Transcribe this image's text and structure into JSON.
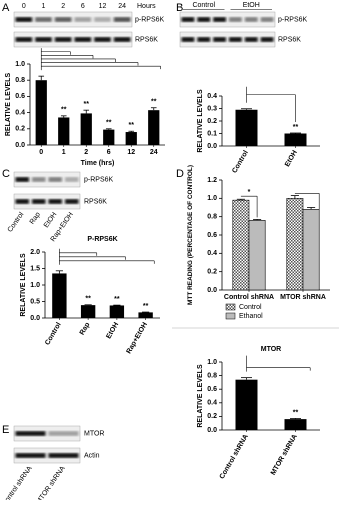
{
  "figure": {
    "panels": [
      "A",
      "B",
      "C",
      "D",
      "E"
    ],
    "blots": [
      {
        "header": [
          "0",
          "1",
          "2",
          "6",
          "12",
          "24"
        ],
        "header_unit": "Hours",
        "rows": [
          "p-RPS6K",
          "RPS6K"
        ]
      },
      {
        "header": [
          "Control",
          "EtOH"
        ],
        "rows": [
          "p-RPS6K",
          "RPS6K"
        ]
      },
      {
        "lanes": [
          "Control",
          "Rap",
          "EtOH",
          "Rap+EtOH"
        ],
        "rows": [
          "p-RPS6K",
          "RPS6K"
        ]
      },
      {
        "lanes": [
          "Control shRNA",
          "MTOR shRNA"
        ],
        "rows": [
          "MTOR",
          "Actin"
        ]
      }
    ]
  },
  "chart_data": [
    {
      "type": "bar",
      "categories": [
        "0",
        "1",
        "2",
        "6",
        "12",
        "24"
      ],
      "values": [
        0.8,
        0.34,
        0.39,
        0.19,
        0.16,
        0.43
      ],
      "errors": [
        0.05,
        0.02,
        0.04,
        0.01,
        0.01,
        0.03
      ],
      "significance": [
        null,
        "**",
        "**",
        "**",
        "**",
        "**"
      ],
      "xlabel": "Time (hrs)",
      "ylabel": "RELATIVE LEVELS",
      "ylim": [
        0,
        1.0
      ],
      "yticks": [
        {
          "value": 0,
          "label": "0.0"
        },
        0.2,
        0.4,
        0.6,
        0.8,
        {
          "value": 1,
          "label": "1.0"
        }
      ],
      "color": "#000000"
    },
    {
      "type": "bar",
      "categories": [
        "Control",
        "EtOH"
      ],
      "values": [
        0.29,
        0.1
      ],
      "errors": [
        0.008,
        0.004
      ],
      "significance": [
        null,
        "**"
      ],
      "ylabel": "RELATIVE LEVELS",
      "ylim": [
        0,
        0.4
      ],
      "yticks": [
        {
          "value": 0,
          "label": "0.0"
        },
        0.1,
        0.2,
        0.3,
        0.4
      ],
      "color": "#000000"
    },
    {
      "type": "bar",
      "title": "P-RPS6K",
      "categories": [
        "Control",
        "Rap",
        "EtOH",
        "Rap+EtOH"
      ],
      "values": [
        1.35,
        0.39,
        0.38,
        0.17
      ],
      "errors": [
        0.08,
        0.01,
        0.01,
        0.01
      ],
      "significance": [
        null,
        "**",
        "**",
        "**"
      ],
      "ylabel": "RELATIVE LEVELS",
      "ylim": [
        0,
        2.0
      ],
      "yticks": [
        {
          "value": 0,
          "label": "0.0"
        },
        0.5,
        {
          "value": 1,
          "label": "1.0"
        },
        1.5,
        {
          "value": 2,
          "label": "2.0"
        }
      ],
      "color": "#000000"
    },
    {
      "type": "grouped_bar",
      "categories": [
        "Control shRNA",
        "MTOR shRNA"
      ],
      "series": [
        {
          "name": "Control",
          "color": "#dddddd",
          "pattern": "checker",
          "values": [
            0.98,
            1.0
          ],
          "errors": [
            0.01,
            0.03
          ]
        },
        {
          "name": "Ethanol",
          "color": "#bbbbbb",
          "values": [
            0.76,
            0.88
          ],
          "errors": [
            0.01,
            0.02
          ],
          "significance": [
            "*",
            null
          ]
        }
      ],
      "ylabel": "MTT READING (PERCENTAGE OF CONTROL)",
      "ylim": [
        0,
        1.2
      ],
      "yticks": [
        {
          "value": 0,
          "label": "0.0"
        },
        0.2,
        0.4,
        0.6,
        0.8,
        {
          "value": 1,
          "label": "1.0"
        },
        1.2
      ]
    },
    {
      "type": "bar",
      "title": "MTOR",
      "categories": [
        "Control shRNA",
        "MTOR shRNA"
      ],
      "values": [
        0.74,
        0.16
      ],
      "errors": [
        0.03,
        0.01
      ],
      "significance": [
        null,
        "**"
      ],
      "ylabel": "RELATIVE LEVELS",
      "ylim": [
        0,
        1.0
      ],
      "yticks": [
        {
          "value": 0,
          "label": "0.0"
        },
        0.2,
        0.4,
        0.6,
        0.8,
        {
          "value": 1,
          "label": "1.0"
        }
      ],
      "color": "#000000"
    }
  ]
}
